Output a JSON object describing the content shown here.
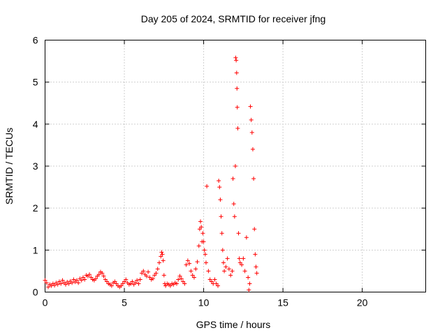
{
  "chart_data": {
    "type": "scatter",
    "title": "Day 205 of 2024, SRMTID for receiver jfng",
    "xlabel": "GPS time / hours",
    "ylabel": "SRMTID / TECUs",
    "xlim": [
      0,
      24
    ],
    "ylim": [
      0,
      6
    ],
    "xticks": [
      0,
      5,
      10,
      15,
      20
    ],
    "yticks": [
      0,
      1,
      2,
      3,
      4,
      5,
      6
    ],
    "grid": true,
    "marker": "plus",
    "series": [
      {
        "name": "SRMTID",
        "color": "#ff0000",
        "points": [
          [
            0.0,
            0.28
          ],
          [
            0.1,
            0.22
          ],
          [
            0.2,
            0.12
          ],
          [
            0.3,
            0.18
          ],
          [
            0.4,
            0.15
          ],
          [
            0.5,
            0.2
          ],
          [
            0.6,
            0.16
          ],
          [
            0.7,
            0.22
          ],
          [
            0.8,
            0.18
          ],
          [
            0.9,
            0.25
          ],
          [
            1.0,
            0.2
          ],
          [
            1.1,
            0.28
          ],
          [
            1.2,
            0.22
          ],
          [
            1.3,
            0.18
          ],
          [
            1.4,
            0.24
          ],
          [
            1.5,
            0.2
          ],
          [
            1.6,
            0.26
          ],
          [
            1.7,
            0.22
          ],
          [
            1.8,
            0.3
          ],
          [
            1.9,
            0.24
          ],
          [
            2.0,
            0.28
          ],
          [
            2.1,
            0.22
          ],
          [
            2.2,
            0.32
          ],
          [
            2.3,
            0.28
          ],
          [
            2.4,
            0.35
          ],
          [
            2.5,
            0.3
          ],
          [
            2.6,
            0.4
          ],
          [
            2.7,
            0.38
          ],
          [
            2.8,
            0.42
          ],
          [
            2.9,
            0.35
          ],
          [
            3.0,
            0.3
          ],
          [
            3.1,
            0.28
          ],
          [
            3.2,
            0.32
          ],
          [
            3.3,
            0.38
          ],
          [
            3.4,
            0.42
          ],
          [
            3.5,
            0.48
          ],
          [
            3.6,
            0.45
          ],
          [
            3.7,
            0.38
          ],
          [
            3.8,
            0.3
          ],
          [
            3.9,
            0.25
          ],
          [
            4.0,
            0.2
          ],
          [
            4.1,
            0.18
          ],
          [
            4.2,
            0.15
          ],
          [
            4.3,
            0.22
          ],
          [
            4.4,
            0.25
          ],
          [
            4.5,
            0.2
          ],
          [
            4.6,
            0.15
          ],
          [
            4.7,
            0.12
          ],
          [
            4.8,
            0.15
          ],
          [
            4.9,
            0.2
          ],
          [
            5.0,
            0.25
          ],
          [
            5.1,
            0.3
          ],
          [
            5.2,
            0.22
          ],
          [
            5.3,
            0.18
          ],
          [
            5.4,
            0.2
          ],
          [
            5.5,
            0.25
          ],
          [
            5.6,
            0.18
          ],
          [
            5.7,
            0.22
          ],
          [
            5.8,
            0.28
          ],
          [
            5.9,
            0.2
          ],
          [
            6.0,
            0.3
          ],
          [
            6.1,
            0.45
          ],
          [
            6.2,
            0.5
          ],
          [
            6.3,
            0.42
          ],
          [
            6.4,
            0.38
          ],
          [
            6.5,
            0.48
          ],
          [
            6.6,
            0.35
          ],
          [
            6.7,
            0.3
          ],
          [
            6.8,
            0.32
          ],
          [
            6.9,
            0.4
          ],
          [
            7.0,
            0.45
          ],
          [
            7.1,
            0.55
          ],
          [
            7.2,
            0.7
          ],
          [
            7.3,
            0.85
          ],
          [
            7.35,
            0.95
          ],
          [
            7.4,
            0.9
          ],
          [
            7.45,
            0.75
          ],
          [
            7.5,
            0.4
          ],
          [
            7.55,
            0.2
          ],
          [
            7.6,
            0.15
          ],
          [
            7.7,
            0.2
          ],
          [
            7.8,
            0.18
          ],
          [
            7.9,
            0.15
          ],
          [
            8.0,
            0.2
          ],
          [
            8.1,
            0.18
          ],
          [
            8.2,
            0.22
          ],
          [
            8.3,
            0.2
          ],
          [
            8.4,
            0.3
          ],
          [
            8.5,
            0.38
          ],
          [
            8.6,
            0.32
          ],
          [
            8.7,
            0.25
          ],
          [
            8.8,
            0.2
          ],
          [
            8.9,
            0.65
          ],
          [
            9.0,
            0.75
          ],
          [
            9.1,
            0.68
          ],
          [
            9.2,
            0.5
          ],
          [
            9.3,
            0.4
          ],
          [
            9.4,
            0.35
          ],
          [
            9.5,
            0.55
          ],
          [
            9.6,
            0.72
          ],
          [
            9.7,
            1.1
          ],
          [
            9.75,
            1.5
          ],
          [
            9.8,
            1.68
          ],
          [
            9.85,
            1.55
          ],
          [
            9.9,
            1.2
          ],
          [
            9.95,
            1.4
          ],
          [
            10.0,
            1.2
          ],
          [
            10.05,
            1.0
          ],
          [
            10.1,
            0.9
          ],
          [
            10.15,
            0.7
          ],
          [
            10.2,
            2.52
          ],
          [
            10.3,
            0.5
          ],
          [
            10.4,
            0.3
          ],
          [
            10.5,
            0.25
          ],
          [
            10.6,
            0.2
          ],
          [
            10.7,
            0.3
          ],
          [
            10.8,
            0.2
          ],
          [
            10.9,
            0.15
          ],
          [
            10.95,
            2.65
          ],
          [
            11.0,
            2.5
          ],
          [
            11.05,
            2.2
          ],
          [
            11.1,
            1.8
          ],
          [
            11.15,
            1.4
          ],
          [
            11.2,
            1.0
          ],
          [
            11.25,
            0.7
          ],
          [
            11.3,
            0.5
          ],
          [
            11.4,
            0.6
          ],
          [
            11.5,
            0.8
          ],
          [
            11.6,
            0.55
          ],
          [
            11.7,
            0.4
          ],
          [
            11.8,
            0.5
          ],
          [
            11.85,
            2.7
          ],
          [
            11.9,
            2.1
          ],
          [
            11.95,
            1.8
          ],
          [
            12.0,
            3.0
          ],
          [
            12.02,
            5.58
          ],
          [
            12.05,
            5.52
          ],
          [
            12.08,
            5.22
          ],
          [
            12.1,
            4.85
          ],
          [
            12.12,
            4.4
          ],
          [
            12.15,
            3.9
          ],
          [
            12.2,
            1.4
          ],
          [
            12.25,
            0.8
          ],
          [
            12.3,
            0.7
          ],
          [
            12.4,
            0.65
          ],
          [
            12.5,
            0.8
          ],
          [
            12.6,
            0.5
          ],
          [
            12.7,
            1.3
          ],
          [
            12.8,
            0.35
          ],
          [
            12.85,
            0.05
          ],
          [
            12.9,
            0.2
          ],
          [
            12.95,
            4.42
          ],
          [
            13.0,
            4.1
          ],
          [
            13.05,
            3.8
          ],
          [
            13.1,
            3.4
          ],
          [
            13.15,
            2.7
          ],
          [
            13.2,
            1.5
          ],
          [
            13.25,
            0.9
          ],
          [
            13.3,
            0.6
          ],
          [
            13.35,
            0.45
          ]
        ]
      }
    ]
  }
}
